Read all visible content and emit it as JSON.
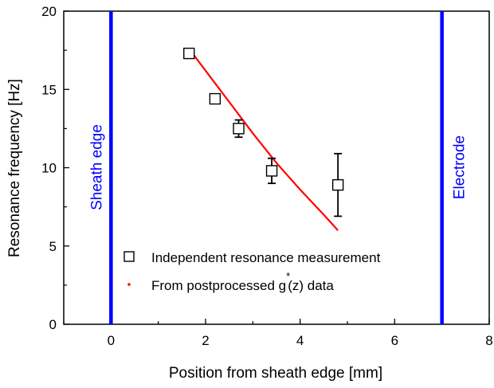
{
  "chart_data": {
    "type": "scatter",
    "xlabel": "Position from sheath edge [mm]",
    "ylabel": "Resonance frequency [Hz]",
    "xlim": [
      -1,
      8
    ],
    "ylim": [
      0,
      20
    ],
    "xticks": [
      0,
      2,
      4,
      6,
      8
    ],
    "yticks": [
      0,
      5,
      10,
      15,
      20
    ],
    "grid": false,
    "legend_position": "bottom-center",
    "series": [
      {
        "name": "Independent resonance measurement",
        "kind": "scatter-errorbar",
        "marker": "open-square",
        "color": "#000000",
        "x": [
          1.65,
          2.2,
          2.7,
          3.4,
          4.8
        ],
        "y": [
          17.3,
          14.4,
          12.5,
          9.8,
          8.9
        ],
        "yerr": [
          0.25,
          0.3,
          0.55,
          0.8,
          2.0
        ]
      },
      {
        "name_parts": [
          "From postprocessed g",
          "*",
          "(z) data"
        ],
        "kind": "line",
        "color": "#ff0000",
        "x": [
          1.65,
          2.0,
          2.5,
          3.0,
          3.5,
          4.0,
          4.5,
          4.8
        ],
        "y": [
          17.6,
          16.2,
          14.2,
          12.2,
          10.3,
          8.6,
          7.0,
          6.0
        ]
      }
    ],
    "vertical_lines": [
      {
        "x": 0,
        "label": "Sheath edge",
        "color": "#0000ff"
      },
      {
        "x": 7,
        "label": "Electrode",
        "color": "#0000ff"
      }
    ]
  }
}
